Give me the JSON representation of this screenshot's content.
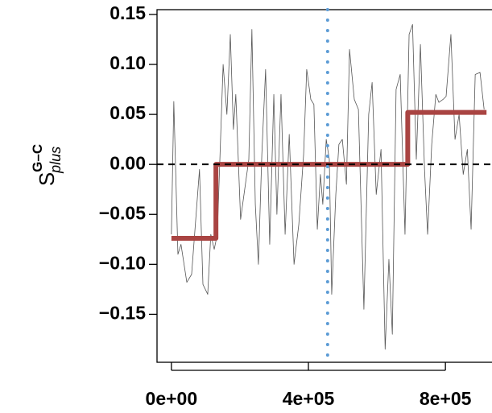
{
  "chart_data": {
    "type": "line",
    "y_label": {
      "base": "S",
      "superscript": "G–C",
      "subscript": "plus"
    },
    "xlim": [
      -42000,
      936000
    ],
    "ylim": [
      -0.198,
      0.1548
    ],
    "xticks": [
      {
        "value": 0,
        "label": "0e+00"
      },
      {
        "value": 400000,
        "label": "4e+05"
      },
      {
        "value": 800000,
        "label": "8e+05"
      }
    ],
    "yticks": [
      {
        "value": 0.15,
        "label": "0.15"
      },
      {
        "value": 0.1,
        "label": "0.10"
      },
      {
        "value": 0.05,
        "label": "0.05"
      },
      {
        "value": 0,
        "label": "0.00"
      },
      {
        "value": -0.05,
        "label": "−0.05"
      },
      {
        "value": -0.1,
        "label": "−0.10"
      },
      {
        "value": -0.15,
        "label": "−0.15"
      }
    ],
    "hline": 0,
    "vline": 456000,
    "series": [
      {
        "color": "#555555",
        "x": [
          0,
          7000,
          19000,
          28000,
          45000,
          59000,
          82000,
          92000,
          106000,
          115000,
          125000,
          134000,
          151000,
          162000,
          172000,
          181000,
          188000,
          202000,
          212000,
          226000,
          235000,
          245000,
          254000,
          264000,
          275000,
          287000,
          299000,
          308000,
          320000,
          332000,
          344000,
          358000,
          372000,
          386000,
          395000,
          407000,
          416000,
          426000,
          435000,
          442000,
          452000,
          461000,
          468000,
          480000,
          489000,
          499000,
          511000,
          520000,
          534000,
          546000,
          562000,
          576000,
          586000,
          598000,
          612000,
          624000,
          635000,
          645000,
          656000,
          668000,
          682000,
          694000,
          704000,
          715000,
          727000,
          739000,
          748000,
          760000,
          772000,
          781000,
          793000,
          802000,
          816000,
          828000,
          840000,
          852000,
          864000,
          875000,
          887000,
          901000,
          913000
        ],
        "values": [
          -0.07,
          0.063,
          -0.09,
          -0.08,
          -0.118,
          -0.11,
          -0.005,
          -0.12,
          -0.13,
          -0.07,
          -0.085,
          -0.07,
          0.1,
          0.05,
          0.13,
          0.035,
          0.07,
          -0.055,
          -0.03,
          0.005,
          0.135,
          -0.04,
          -0.1,
          0.01,
          0.095,
          -0.08,
          0.07,
          -0.05,
          0.07,
          -0.07,
          0.03,
          -0.1,
          -0.06,
          0.01,
          0.095,
          0.065,
          0.06,
          -0.065,
          -0.01,
          -0.04,
          0.025,
          0.005,
          -0.13,
          -0.03,
          0.02,
          0.025,
          -0.02,
          0.115,
          0.065,
          0.055,
          -0.145,
          0.05,
          0.082,
          -0.03,
          0.015,
          -0.185,
          -0.095,
          -0.17,
          0.075,
          0.09,
          -0.07,
          0.13,
          0.14,
          0.005,
          0.12,
          -0.005,
          -0.07,
          0.02,
          0.07,
          0.062,
          0.065,
          0.068,
          0.13,
          0.025,
          0.05,
          -0.01,
          0.015,
          -0.065,
          0.09,
          0.092,
          0.055
        ]
      },
      {
        "color": "#a94442",
        "x": [
          0,
          130000,
          130000,
          690000,
          690000,
          920000
        ],
        "values": [
          -0.074,
          -0.074,
          0,
          0,
          0.052,
          0.052
        ]
      }
    ]
  }
}
